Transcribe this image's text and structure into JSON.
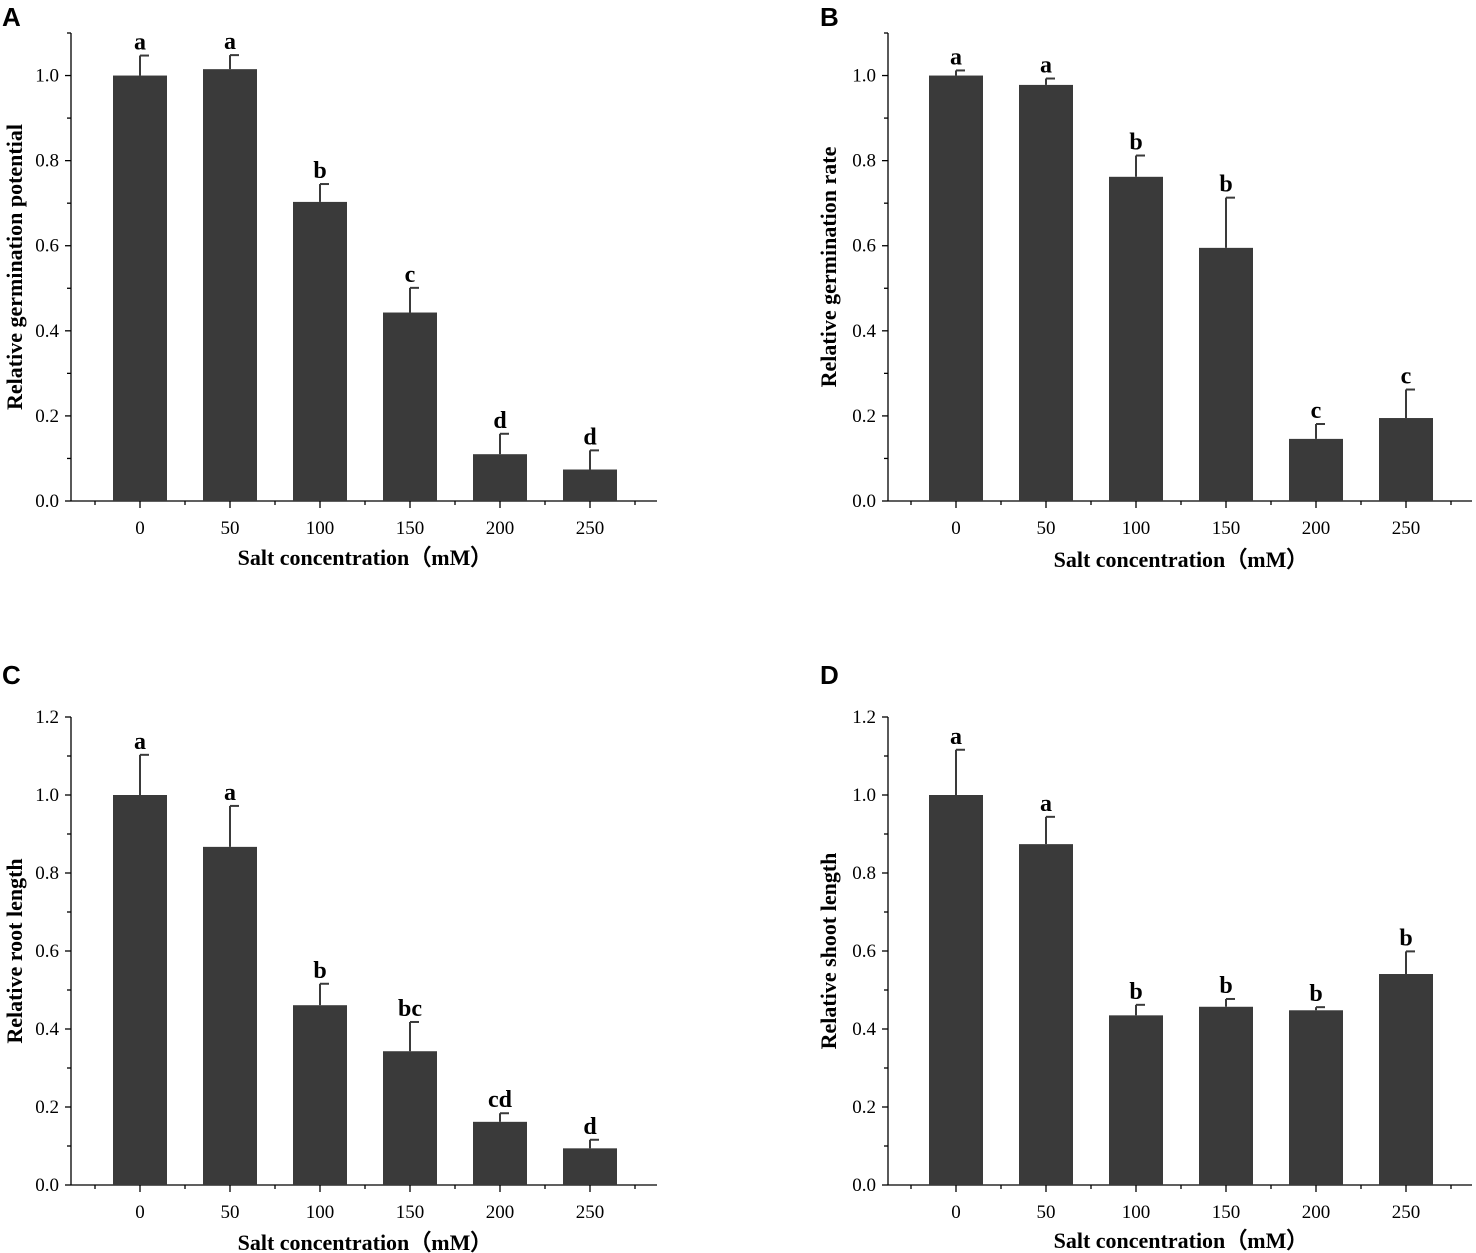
{
  "colors": {
    "bar": "#3a3a3a",
    "axis": "#000000",
    "background": "#ffffff"
  },
  "chart_data": [
    {
      "panel": "A",
      "type": "bar",
      "categories": [
        "0",
        "50",
        "100",
        "150",
        "200",
        "250"
      ],
      "values": [
        1.0,
        1.015,
        0.703,
        0.443,
        0.11,
        0.074
      ],
      "errors": [
        0.047,
        0.033,
        0.042,
        0.058,
        0.048,
        0.045
      ],
      "significance": [
        "a",
        "a",
        "b",
        "c",
        "d",
        "d"
      ],
      "xlabel": "Salt concentration（mM）",
      "ylabel": "Relative germination potential",
      "ylim": [
        0,
        1.1
      ],
      "yticks": [
        "0.0",
        "0.2",
        "0.4",
        "0.6",
        "0.8",
        "1.0"
      ]
    },
    {
      "panel": "B",
      "type": "bar",
      "categories": [
        "0",
        "50",
        "100",
        "150",
        "200",
        "250"
      ],
      "values": [
        1.0,
        0.978,
        0.762,
        0.595,
        0.146,
        0.195
      ],
      "errors": [
        0.012,
        0.015,
        0.05,
        0.118,
        0.035,
        0.067
      ],
      "significance": [
        "a",
        "a",
        "b",
        "b",
        "c",
        "c"
      ],
      "xlabel": "Salt concentration（mM）",
      "ylabel": "Relative germination rate",
      "ylim": [
        0,
        1.1
      ],
      "yticks": [
        "0.0",
        "0.2",
        "0.4",
        "0.6",
        "0.8",
        "1.0"
      ]
    },
    {
      "panel": "C",
      "type": "bar",
      "categories": [
        "0",
        "50",
        "100",
        "150",
        "200",
        "250"
      ],
      "values": [
        1.0,
        0.867,
        0.461,
        0.343,
        0.162,
        0.094
      ],
      "errors": [
        0.103,
        0.105,
        0.055,
        0.075,
        0.022,
        0.022
      ],
      "significance": [
        "a",
        "a",
        "b",
        "bc",
        "cd",
        "d"
      ],
      "xlabel": "Salt concentration（mM）",
      "ylabel": "Relative root length",
      "ylim": [
        0,
        1.2
      ],
      "yticks": [
        "0.0",
        "0.2",
        "0.4",
        "0.6",
        "0.8",
        "1.0",
        "1.2"
      ]
    },
    {
      "panel": "D",
      "type": "bar",
      "categories": [
        "0",
        "50",
        "100",
        "150",
        "200",
        "250"
      ],
      "values": [
        1.0,
        0.874,
        0.435,
        0.457,
        0.448,
        0.541
      ],
      "errors": [
        0.116,
        0.07,
        0.027,
        0.02,
        0.008,
        0.058
      ],
      "significance": [
        "a",
        "a",
        "b",
        "b",
        "b",
        "b"
      ],
      "xlabel": "Salt concentration（mM）",
      "ylabel": "Relative shoot length",
      "ylim": [
        0,
        1.2
      ],
      "yticks": [
        "0.0",
        "0.2",
        "0.4",
        "0.6",
        "0.8",
        "1.0",
        "1.2"
      ]
    }
  ]
}
